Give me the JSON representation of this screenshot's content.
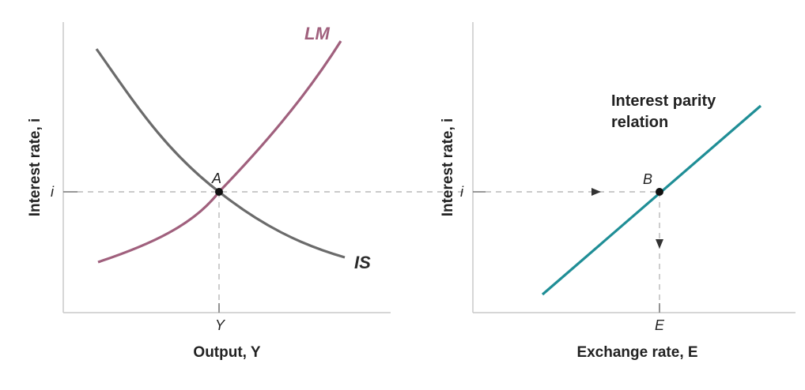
{
  "left_panel": {
    "y_axis_label": "Interest rate, i",
    "x_axis_label": "Output, Y",
    "y_tick": "i",
    "x_tick": "Y",
    "point_label": "A",
    "curves": [
      {
        "name": "LM",
        "color": "#a0607d"
      },
      {
        "name": "IS",
        "color": "#6b6b6b"
      }
    ]
  },
  "right_panel": {
    "y_axis_label": "Interest rate, i",
    "x_axis_label": "Exchange rate, E",
    "y_tick": "i",
    "x_tick": "E",
    "point_label": "B",
    "line_label_1": "Interest parity",
    "line_label_2": "relation",
    "line_color": "#1f8e96"
  }
}
